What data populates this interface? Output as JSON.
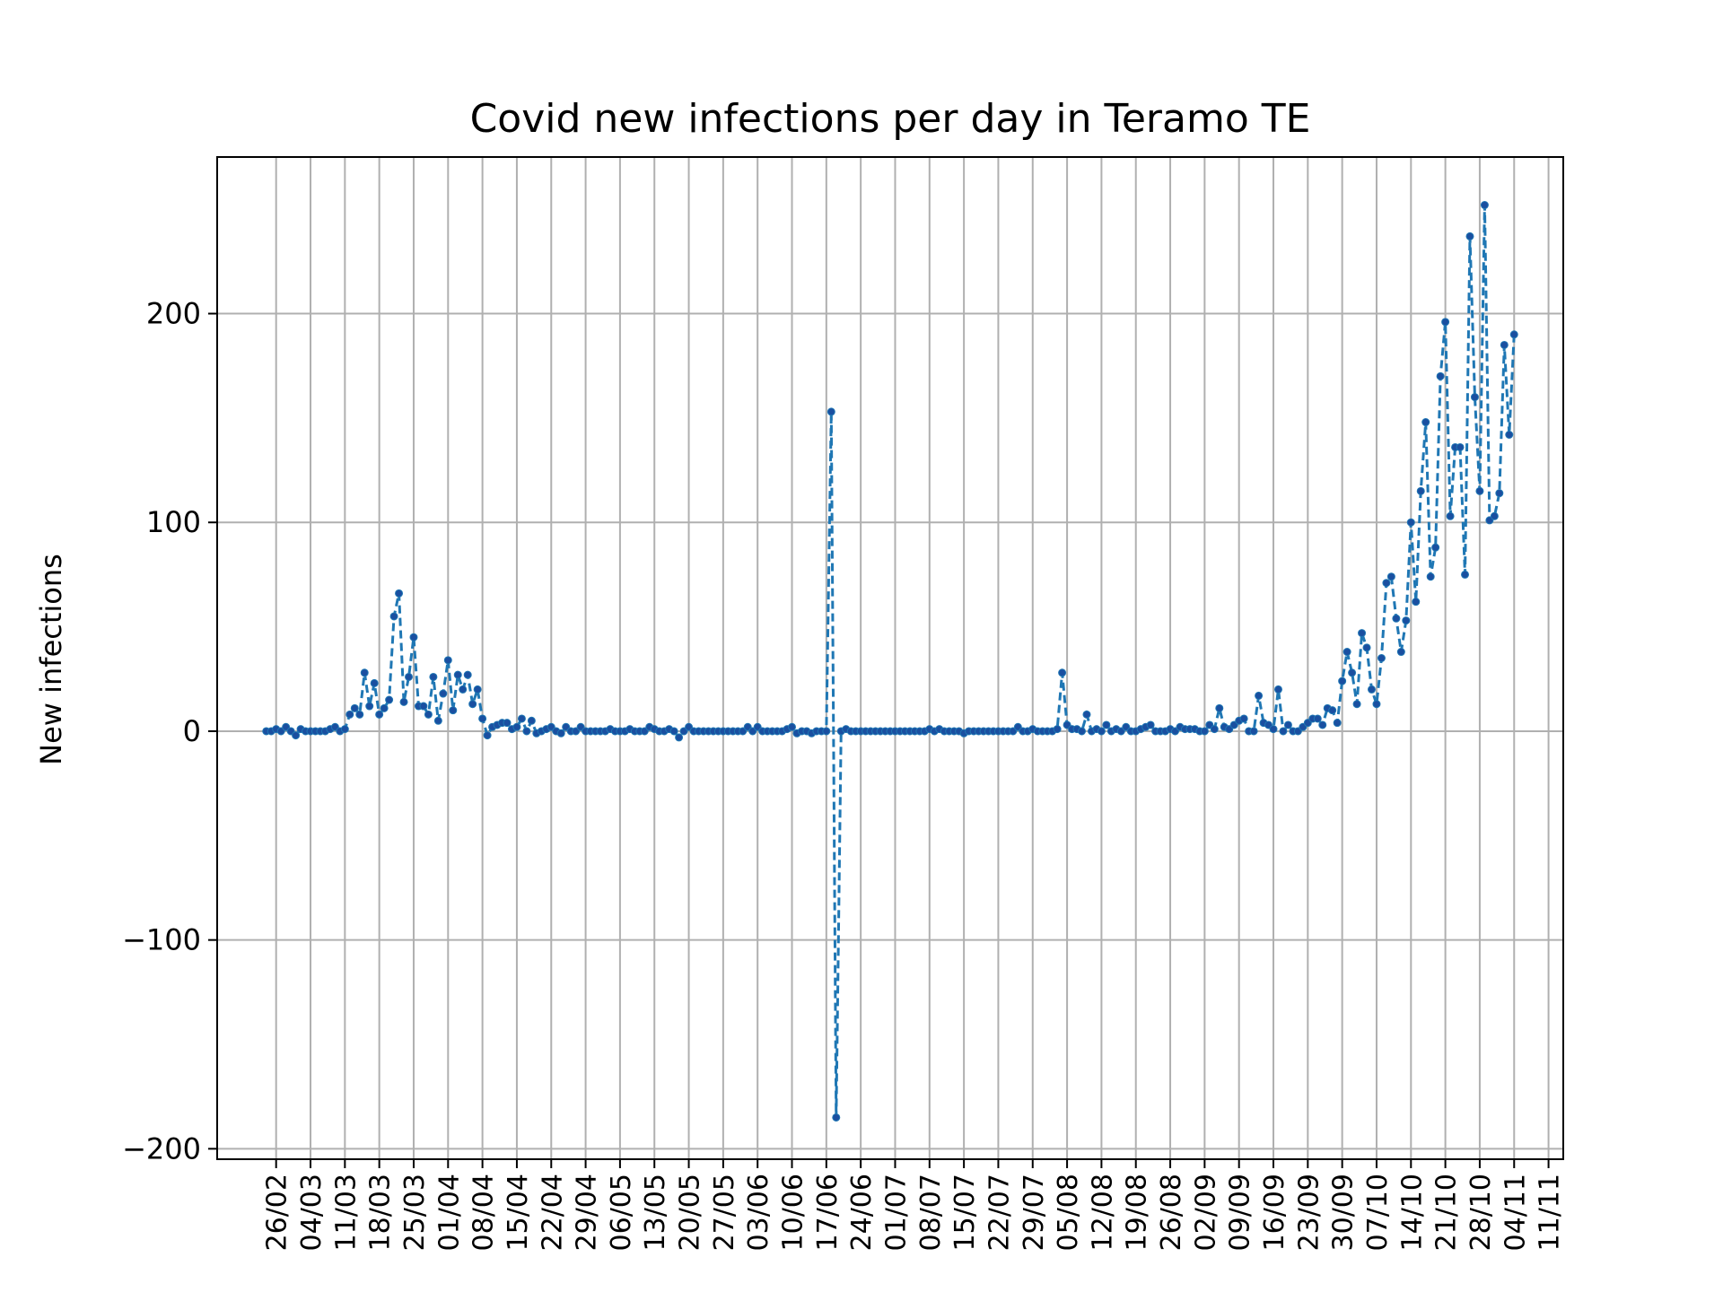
{
  "chart_data": {
    "type": "line",
    "title": "Covid new infections per day in Teramo TE",
    "xlabel": "",
    "ylabel": "New infections",
    "ylim": [
      -205,
      275
    ],
    "yticks": [
      -200,
      -100,
      0,
      100,
      200
    ],
    "ytick_labels": [
      "−200",
      "−100",
      "0",
      "100",
      "200"
    ],
    "grid": true,
    "legend": "none",
    "line_style": "dashed",
    "marker": "dot",
    "colors": {
      "line": "#1f77b4",
      "marker": "#1a4fa0",
      "grid": "#b0b0b0",
      "axis": "#000000"
    },
    "first_date": "2020-02-24",
    "xtick_dates": [
      "2020-02-26",
      "2020-03-04",
      "2020-03-11",
      "2020-03-18",
      "2020-03-25",
      "2020-04-01",
      "2020-04-08",
      "2020-04-15",
      "2020-04-22",
      "2020-04-29",
      "2020-05-06",
      "2020-05-13",
      "2020-05-20",
      "2020-05-27",
      "2020-06-03",
      "2020-06-10",
      "2020-06-17",
      "2020-06-24",
      "2020-07-01",
      "2020-07-08",
      "2020-07-15",
      "2020-07-22",
      "2020-07-29",
      "2020-08-05",
      "2020-08-12",
      "2020-08-19",
      "2020-08-26",
      "2020-09-02",
      "2020-09-09",
      "2020-09-16",
      "2020-09-23",
      "2020-09-30",
      "2020-10-07",
      "2020-10-14",
      "2020-10-21",
      "2020-10-28",
      "2020-11-04",
      "2020-11-11"
    ],
    "xtick_labels": [
      "26/02",
      "04/03",
      "11/03",
      "18/03",
      "25/03",
      "01/04",
      "08/04",
      "15/04",
      "22/04",
      "29/04",
      "06/05",
      "13/05",
      "20/05",
      "27/05",
      "03/06",
      "10/06",
      "17/06",
      "24/06",
      "01/07",
      "08/07",
      "15/07",
      "22/07",
      "29/07",
      "05/08",
      "12/08",
      "19/08",
      "26/08",
      "02/09",
      "09/09",
      "16/09",
      "23/09",
      "30/09",
      "07/10",
      "14/10",
      "21/10",
      "28/10",
      "04/11",
      "11/11"
    ],
    "values": [
      0,
      0,
      1,
      0,
      2,
      0,
      -2,
      1,
      0,
      0,
      0,
      0,
      0,
      1,
      2,
      0,
      1,
      8,
      11,
      8,
      28,
      12,
      23,
      8,
      11,
      15,
      55,
      66,
      14,
      26,
      45,
      12,
      12,
      8,
      26,
      5,
      18,
      34,
      10,
      27,
      20,
      27,
      13,
      20,
      6,
      -2,
      2,
      3,
      4,
      4,
      1,
      2,
      6,
      0,
      5,
      -1,
      0,
      1,
      2,
      0,
      -1,
      2,
      0,
      0,
      2,
      0,
      0,
      0,
      0,
      0,
      1,
      0,
      0,
      0,
      1,
      0,
      0,
      0,
      2,
      1,
      0,
      0,
      1,
      0,
      -3,
      0,
      2,
      0,
      0,
      0,
      0,
      0,
      0,
      0,
      0,
      0,
      0,
      0,
      2,
      0,
      2,
      0,
      0,
      0,
      0,
      0,
      1,
      2,
      -1,
      0,
      0,
      -1,
      0,
      0,
      0,
      153,
      -185,
      0,
      1,
      0,
      0,
      0,
      0,
      0,
      0,
      0,
      0,
      0,
      0,
      0,
      0,
      0,
      0,
      0,
      0,
      1,
      0,
      1,
      0,
      0,
      0,
      0,
      -1,
      0,
      0,
      0,
      0,
      0,
      0,
      0,
      0,
      0,
      0,
      2,
      0,
      0,
      1,
      0,
      0,
      0,
      0,
      1,
      28,
      3,
      1,
      1,
      0,
      8,
      0,
      1,
      0,
      3,
      0,
      1,
      0,
      2,
      0,
      0,
      1,
      2,
      3,
      0,
      0,
      0,
      1,
      0,
      2,
      1,
      1,
      1,
      0,
      0,
      3,
      1,
      11,
      2,
      1,
      3,
      5,
      6,
      0,
      0,
      17,
      4,
      3,
      1,
      20,
      0,
      3,
      0,
      0,
      2,
      4,
      6,
      6,
      3,
      11,
      10,
      4,
      24,
      38,
      28,
      13,
      47,
      40,
      20,
      13,
      35,
      71,
      74,
      54,
      38,
      53,
      100,
      62,
      115,
      148,
      74,
      88,
      170,
      196,
      103,
      136,
      136,
      75,
      237,
      160,
      115,
      252,
      101,
      103,
      114,
      185,
      142,
      190
    ]
  }
}
